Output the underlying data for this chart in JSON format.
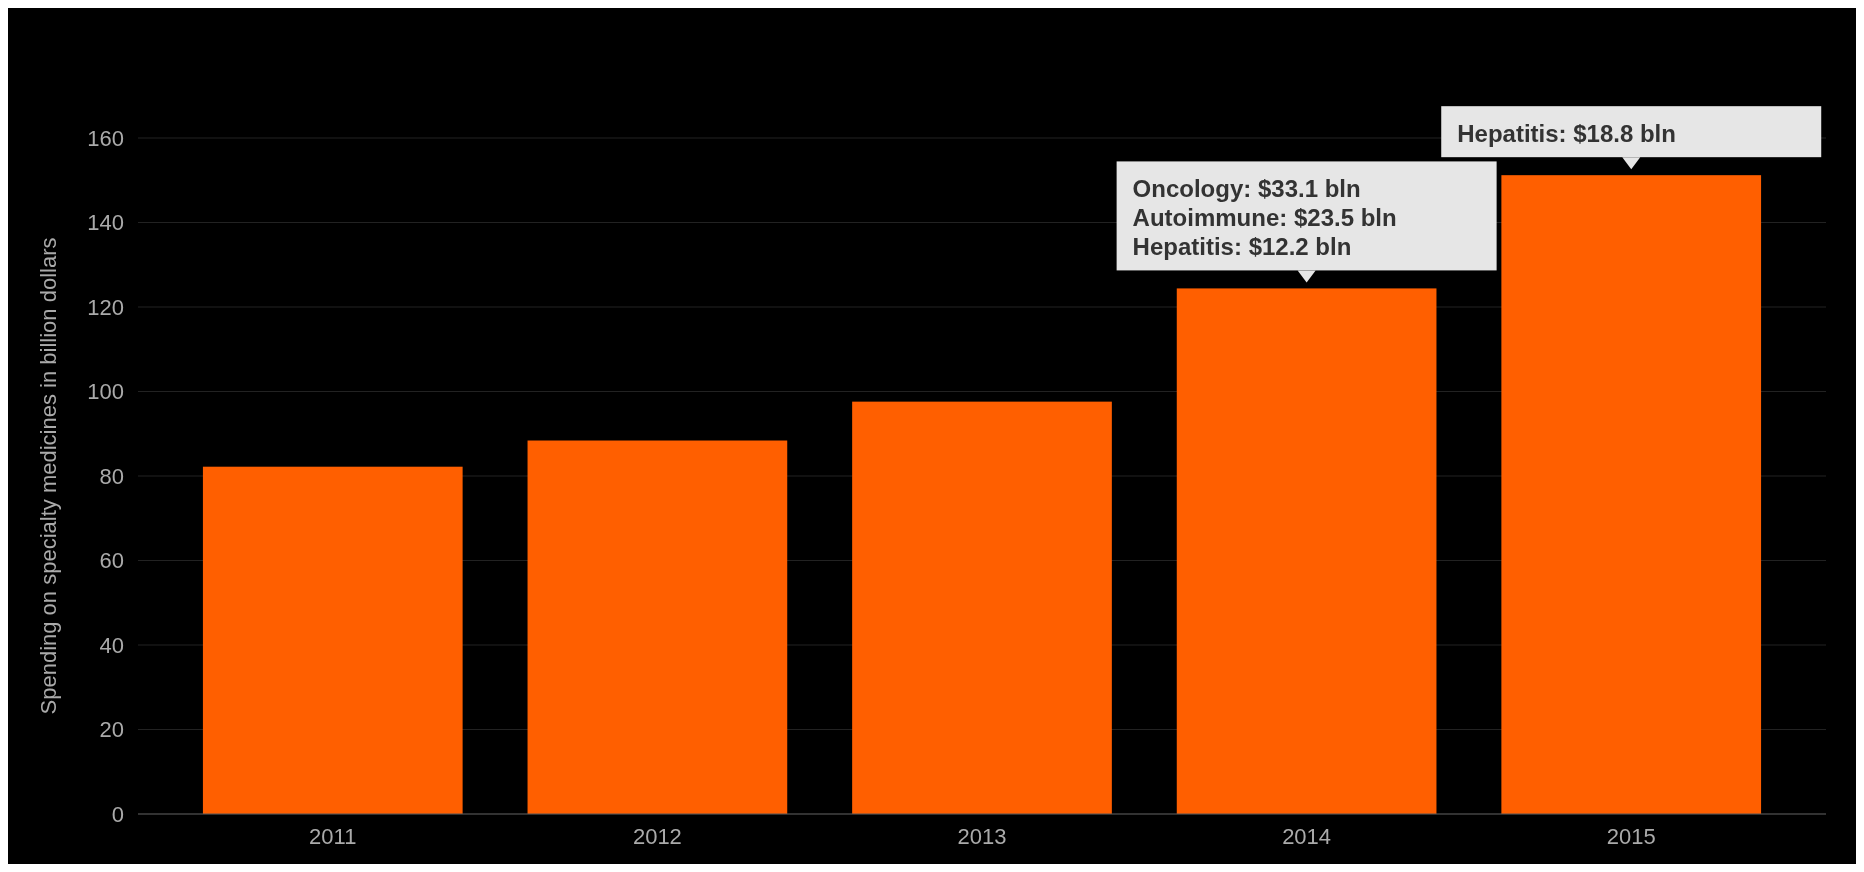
{
  "chart_data": {
    "type": "bar",
    "ylabel": "Spending on specialty medicines in billion dollars",
    "categories": [
      "2011",
      "2012",
      "2013",
      "2014",
      "2015"
    ],
    "values": [
      82.2,
      88.4,
      97.6,
      124.4,
      151.2
    ],
    "color": "#ff5f00",
    "ylim": [
      0,
      160
    ],
    "yticks": [
      0,
      20,
      40,
      60,
      80,
      100,
      120,
      140,
      160
    ],
    "grid": "y",
    "annotations": [
      {
        "text": "Oncology: $33.1 bln\nAutoimmune: $23.5 bln\nHepatitis: $12.2 bln",
        "x": "2014",
        "y": 124.4
      },
      {
        "text": "Hepatitis: $18.8 bln",
        "x": "2015",
        "y": 151.2
      }
    ]
  }
}
